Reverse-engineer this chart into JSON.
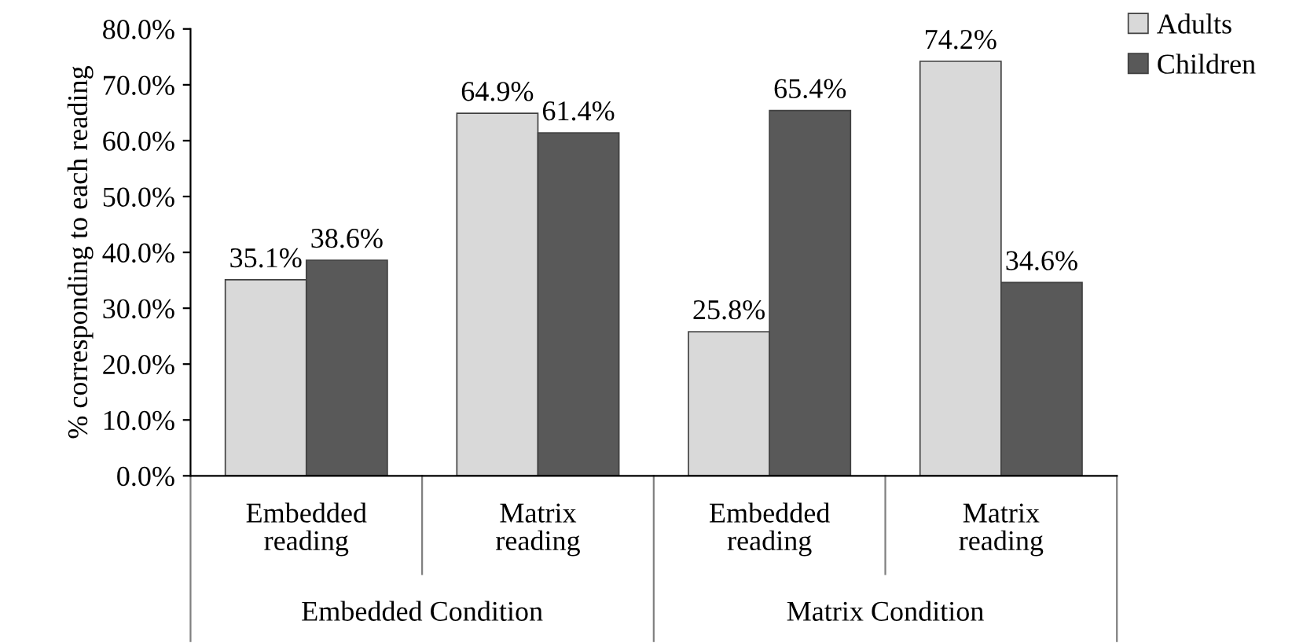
{
  "chart_data": {
    "type": "bar",
    "ylabel": "% corresponding to each reading",
    "categories": [
      "Embedded\nreading",
      "Matrix\nreading",
      "Embedded\nreading",
      "Matrix\nreading"
    ],
    "series": [
      {
        "name": "Adults",
        "color": "#d9d9d9",
        "values": [
          35.1,
          64.9,
          25.8,
          74.2
        ],
        "value_labels": [
          "35.1%",
          "64.9%",
          "25.8%",
          "74.2%"
        ]
      },
      {
        "name": "Children",
        "color": "#595959",
        "values": [
          38.6,
          61.4,
          65.4,
          34.6
        ],
        "value_labels": [
          "38.6%",
          "61.4%",
          "65.4%",
          "34.6%"
        ]
      }
    ],
    "annotations": [
      "Embedded Condition",
      "Matrix Condition"
    ],
    "ylim": [
      0,
      80
    ],
    "yticks": [
      {
        "value": 0,
        "label": "0.0%"
      },
      {
        "value": 10,
        "label": "10.0%"
      },
      {
        "value": 20,
        "label": "20.0%"
      },
      {
        "value": 30,
        "label": "30.0%"
      },
      {
        "value": 40,
        "label": "40.0%"
      },
      {
        "value": 50,
        "label": "50.0%"
      },
      {
        "value": 60,
        "label": "60.0%"
      },
      {
        "value": 70,
        "label": "70.0%"
      },
      {
        "value": 80,
        "label": "80.0%"
      }
    ],
    "grid": false,
    "legend": "top right"
  }
}
